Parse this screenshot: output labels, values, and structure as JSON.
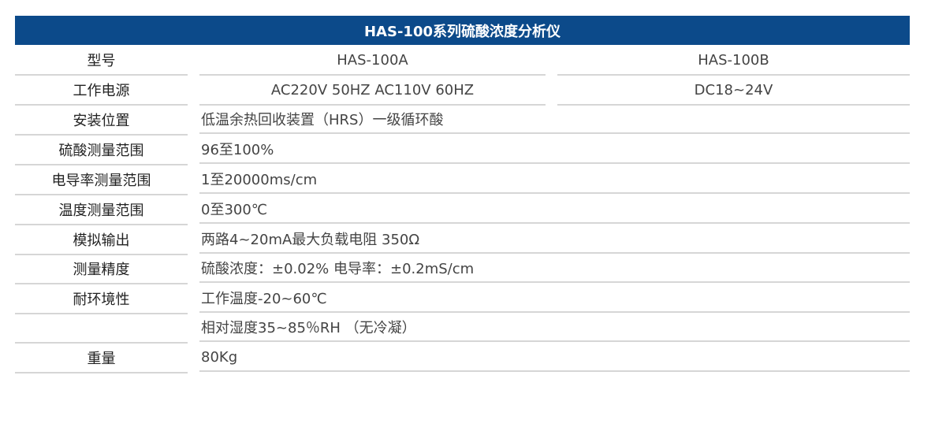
{
  "title": "HAS-100系列硫酸浓度分析仪",
  "colors": {
    "header_bg": "#0c4a8a",
    "divider": "#d6d6d6"
  },
  "model_row": {
    "label": "型号",
    "a": "HAS-100A",
    "b": "HAS-100B"
  },
  "power_row": {
    "label": "工作电源",
    "a": "AC220V 50HZ  AC110V 60HZ",
    "b": "DC18~24V"
  },
  "rows": [
    {
      "label": "安装位置",
      "value": "低温余热回收装置（HRS）一级循环酸"
    },
    {
      "label": "硫酸测量范围",
      "value": "96至100%"
    },
    {
      "label": "电导率测量范围",
      "value": "1至20000ms/cm"
    },
    {
      "label": "温度测量范围",
      "value": "0至300℃"
    },
    {
      "label": "模拟输出",
      "value": "两路4~20mA最大负载电阻 350Ω"
    },
    {
      "label": "测量精度",
      "value": "硫酸浓度：±0.02%  电导率：±0.2mS/cm"
    },
    {
      "label": "耐环境性",
      "value": "工作温度-20~60℃"
    },
    {
      "label": "",
      "value": "相对湿度35~85％RH （无冷凝）"
    },
    {
      "label": "重量",
      "value": "80Kg"
    }
  ]
}
